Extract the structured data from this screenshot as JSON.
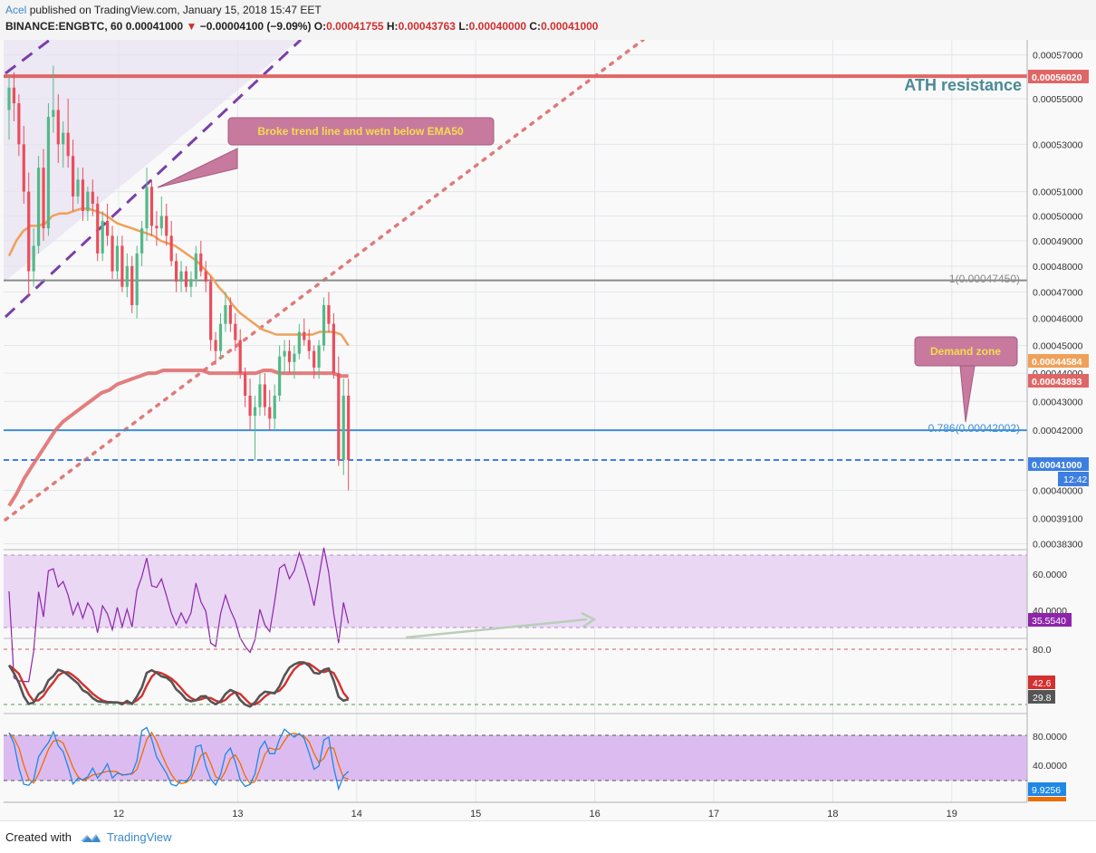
{
  "header": {
    "user": "Acel",
    "published": "published on TradingView.com, January 15, 2018 15:47 EET",
    "symbol": "BINANCE:ENGBTC, 60",
    "last": "0.00041000",
    "change_arrow": "▼",
    "change": "−0.00004100 (−9.09%)",
    "o_label": "O:",
    "o": "0.00041755",
    "h_label": "H:",
    "h": "0.00043763",
    "l_label": "L:",
    "l": "0.00040000",
    "c_label": "C:",
    "c": "0.00041000"
  },
  "footer": {
    "created": "Created with",
    "brand": "TradingView"
  },
  "colors": {
    "up": "#53b987",
    "down": "#eb4d5c",
    "ema50": "#f0a058",
    "ema200": "#e07070",
    "resistance": "#e06666",
    "fib": "#3d8fd6",
    "rsi": "#8e24aa",
    "panel_fill": "#e9d7f4"
  },
  "chart_data": {
    "type": "candlestick",
    "x": {
      "tick_labels": [
        "12",
        "13",
        "14",
        "15",
        "16",
        "17",
        "18",
        "19"
      ],
      "unit": "day (January 2018), 1 candle = 1 hour",
      "start": "2018-01-11T04:00"
    },
    "y": {
      "tick_labels": [
        "0.00057000",
        "0.00055000",
        "0.00053000",
        "0.00051000",
        "0.00050000",
        "0.00049000",
        "0.00048000",
        "0.00047000",
        "0.00046000",
        "0.00045000",
        "0.00044000",
        "0.00043000",
        "0.00042000",
        "0.00041000",
        "0.00040000",
        "0.00039100",
        "0.00038300"
      ],
      "ylim": [
        0.000382,
        0.000577
      ],
      "scale": "log"
    },
    "ohlc": [
      [
        0.000545,
        0.00056,
        0.000532,
        0.000555
      ],
      [
        0.000555,
        0.000562,
        0.00054,
        0.000548
      ],
      [
        0.000548,
        0.000552,
        0.000525,
        0.00053
      ],
      [
        0.00053,
        0.000538,
        0.000505,
        0.00051
      ],
      [
        0.00051,
        0.000518,
        0.000468,
        0.000478
      ],
      [
        0.000478,
        0.000495,
        0.000472,
        0.000488
      ],
      [
        0.000488,
        0.000525,
        0.000485,
        0.00052
      ],
      [
        0.00052,
        0.000528,
        0.00049,
        0.000495
      ],
      [
        0.000495,
        0.000548,
        0.000492,
        0.000542
      ],
      [
        0.000542,
        0.000565,
        0.000535,
        0.000545
      ],
      [
        0.000545,
        0.000552,
        0.000522,
        0.00053
      ],
      [
        0.00053,
        0.00054,
        0.00052,
        0.000535
      ],
      [
        0.000535,
        0.00055,
        0.00052,
        0.000525
      ],
      [
        0.000525,
        0.000532,
        0.000502,
        0.000508
      ],
      [
        0.000508,
        0.00052,
        0.000505,
        0.000515
      ],
      [
        0.000515,
        0.00052,
        0.000498,
        0.000502
      ],
      [
        0.000502,
        0.000512,
        0.000498,
        0.00051
      ],
      [
        0.00051,
        0.000515,
        0.0005,
        0.000505
      ],
      [
        0.000505,
        0.000508,
        0.000482,
        0.000485
      ],
      [
        0.000485,
        0.000502,
        0.000482,
        0.000498
      ],
      [
        0.000498,
        0.000505,
        0.000488,
        0.000492
      ],
      [
        0.000492,
        0.000496,
        0.000475,
        0.000478
      ],
      [
        0.000478,
        0.000492,
        0.000475,
        0.000488
      ],
      [
        0.000488,
        0.000492,
        0.00047,
        0.000472
      ],
      [
        0.000472,
        0.000485,
        0.000468,
        0.00048
      ],
      [
        0.00048,
        0.000484,
        0.000462,
        0.000465
      ],
      [
        0.000465,
        0.000488,
        0.00046,
        0.000485
      ],
      [
        0.000485,
        0.000498,
        0.00048,
        0.000495
      ],
      [
        0.000495,
        0.00052,
        0.00049,
        0.000512
      ],
      [
        0.000512,
        0.000515,
        0.000492,
        0.000496
      ],
      [
        0.000496,
        0.000502,
        0.000488,
        0.000495
      ],
      [
        0.000495,
        0.000508,
        0.000492,
        0.0005
      ],
      [
        0.0005,
        0.000505,
        0.000488,
        0.000492
      ],
      [
        0.000492,
        0.000498,
        0.00048,
        0.000482
      ],
      [
        0.000482,
        0.000485,
        0.00047,
        0.000474
      ],
      [
        0.000474,
        0.000482,
        0.00047,
        0.000478
      ],
      [
        0.000478,
        0.00048,
        0.00047,
        0.000472
      ],
      [
        0.000472,
        0.000478,
        0.000468,
        0.000475
      ],
      [
        0.000475,
        0.000488,
        0.000472,
        0.000485
      ],
      [
        0.000485,
        0.00049,
        0.000476,
        0.000478
      ],
      [
        0.000478,
        0.000482,
        0.00047,
        0.000474
      ],
      [
        0.000474,
        0.000476,
        0.000448,
        0.000452
      ],
      [
        0.000452,
        0.000455,
        0.000443,
        0.000448
      ],
      [
        0.000448,
        0.000462,
        0.000445,
        0.000458
      ],
      [
        0.000458,
        0.00047,
        0.000455,
        0.000465
      ],
      [
        0.000465,
        0.000468,
        0.000455,
        0.000458
      ],
      [
        0.000458,
        0.000462,
        0.000448,
        0.000452
      ],
      [
        0.000452,
        0.000456,
        0.000438,
        0.00044
      ],
      [
        0.00044,
        0.000442,
        0.000428,
        0.000432
      ],
      [
        0.000432,
        0.000438,
        0.00042,
        0.000425
      ],
      [
        0.000425,
        0.000432,
        0.00041,
        0.000428
      ],
      [
        0.000428,
        0.00044,
        0.000425,
        0.000436
      ],
      [
        0.000436,
        0.00044,
        0.000425,
        0.000428
      ],
      [
        0.000428,
        0.000434,
        0.00042,
        0.000424
      ],
      [
        0.000424,
        0.000436,
        0.00042,
        0.000432
      ],
      [
        0.000432,
        0.00045,
        0.00043,
        0.000446
      ],
      [
        0.000446,
        0.000452,
        0.00044,
        0.000448
      ],
      [
        0.000448,
        0.000452,
        0.00044,
        0.000444
      ],
      [
        0.000444,
        0.00045,
        0.000438,
        0.000447
      ],
      [
        0.000447,
        0.000458,
        0.000445,
        0.000455
      ],
      [
        0.000455,
        0.00046,
        0.00045,
        0.000452
      ],
      [
        0.000452,
        0.000456,
        0.000445,
        0.000448
      ],
      [
        0.000448,
        0.00045,
        0.000438,
        0.000442
      ],
      [
        0.000442,
        0.000452,
        0.000438,
        0.00045
      ],
      [
        0.00045,
        0.000468,
        0.000448,
        0.000465
      ],
      [
        0.000465,
        0.00047,
        0.000455,
        0.000458
      ],
      [
        0.000458,
        0.000462,
        0.000438,
        0.00044
      ],
      [
        0.00044,
        0.000446,
        0.000408,
        0.00041
      ],
      [
        0.00041,
        0.000438,
        0.000405,
        0.000432
      ],
      [
        0.000432,
        0.000438,
        0.0004,
        0.00041
      ]
    ],
    "series": [
      {
        "name": "",
        "color": "#f0a058",
        "values": [
          0.000484,
          0.00049,
          0.000494,
          0.000496,
          0.000496,
          0.000497,
          0.0005,
          0.000501,
          0.000501,
          0.000502,
          0.000503,
          0.000503,
          0.000502,
          0.000501,
          0.000499,
          0.000497,
          0.000496,
          0.000495,
          0.000494,
          0.000493,
          0.000492,
          0.00049,
          0.000489,
          0.000488,
          0.000486,
          0.000484,
          0.000482,
          0.000479,
          0.000476,
          0.000472,
          0.000469,
          0.000465,
          0.000462,
          0.00046,
          0.000458,
          0.000456,
          0.000455,
          0.000454,
          0.000454,
          0.000454,
          0.000454,
          0.000454,
          0.000454,
          0.000455,
          0.000455,
          0.000455,
          0.000454,
          0.00045
        ]
      },
      {
        "name": "",
        "color": "#e07070",
        "values": [
          0.000395,
          0.000399,
          0.000404,
          0.000408,
          0.000412,
          0.000416,
          0.00042,
          0.000423,
          0.000425,
          0.000427,
          0.000429,
          0.000431,
          0.000433,
          0.000434,
          0.000436,
          0.000437,
          0.000438,
          0.000439,
          0.00044,
          0.00044,
          0.000441,
          0.000441,
          0.000441,
          0.000441,
          0.000441,
          0.000441,
          0.00044,
          0.00044,
          0.00044,
          0.00044,
          0.00044,
          0.00044,
          0.00044,
          0.000441,
          0.000441,
          0.00044,
          0.00044,
          0.00044,
          0.00044,
          0.00044,
          0.00044,
          0.00044,
          0.00044,
          0.000439,
          0.000439
        ]
      },
      {
        "name": "RSI",
        "color": "#8e24aa",
        "last": "35.5540"
      },
      {
        "name": "Stoch K",
        "color": "#555555",
        "last": "29.8"
      },
      {
        "name": "Stoch D",
        "color": "#d33030",
        "last": "42.6"
      },
      {
        "name": "Stoch RSI",
        "color": "#3d8fd6",
        "last": "9.9256"
      }
    ],
    "price_labels": {
      "resistance": "0.00056020",
      "ema50_last": "0.00044584",
      "ema200_last": "0.00043893",
      "last_price": "0.00041000",
      "countdown": "12:42"
    },
    "levels": {
      "ath": 0.0005602,
      "fib1": 0.0004745,
      "fib786": 0.00042002,
      "last": 0.00041
    },
    "annotations": {
      "ath": "ATH resistance",
      "broke": "Broke trend line and wetn below EMA50",
      "demand": "Demand zone",
      "fib1": "1(0.00047450)",
      "fib786": "0.786(0.00042002)"
    },
    "rsi_axis": [
      "60.0000",
      "40.0000"
    ],
    "stoch_axis": [
      "80.0"
    ],
    "stochrsi_axis": [
      "80.0000",
      "40.0000"
    ]
  }
}
